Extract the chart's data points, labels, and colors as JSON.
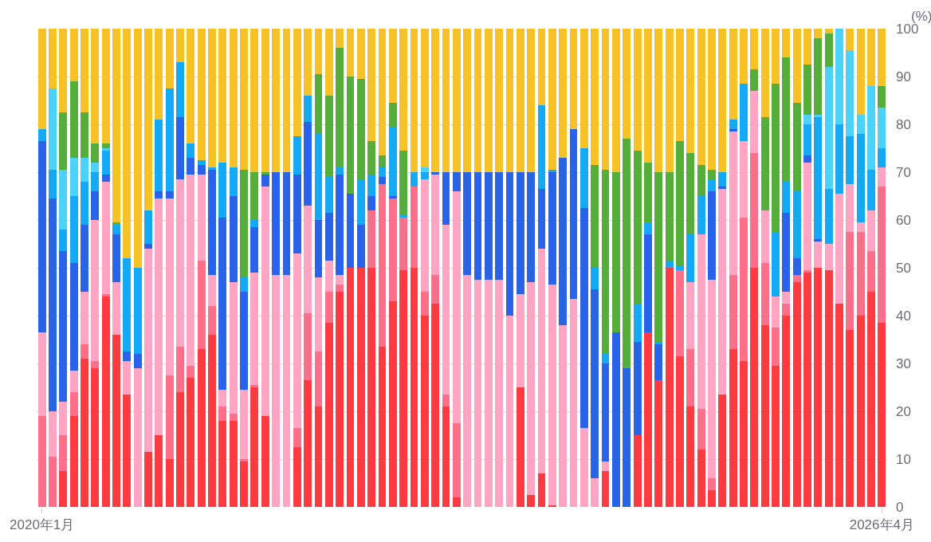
{
  "chart_data": {
    "type": "bar",
    "stacked": true,
    "ylabel": "(%)",
    "grid": "y",
    "legend": false,
    "ylim": [
      0,
      100
    ],
    "yticks": [
      0,
      10,
      20,
      30,
      40,
      50,
      60,
      70,
      80,
      90,
      100
    ],
    "categories": [
      "2020年1月",
      null,
      null,
      null,
      null,
      null,
      null,
      null,
      null,
      null,
      null,
      null,
      null,
      null,
      null,
      null,
      null,
      null,
      null,
      null,
      null,
      null,
      null,
      null,
      null,
      null,
      null,
      null,
      null,
      null,
      null,
      null,
      null,
      null,
      null,
      null,
      null,
      null,
      null,
      null,
      null,
      null,
      null,
      null,
      null,
      null,
      null,
      null,
      null,
      null,
      null,
      null,
      null,
      null,
      null,
      null,
      null,
      null,
      null,
      null,
      null,
      null,
      null,
      null,
      null,
      null,
      null,
      null,
      null,
      null,
      null,
      null,
      null,
      null,
      null,
      null,
      null,
      null,
      null,
      "2026年4月"
    ],
    "series": [
      {
        "color": "#ff3a40",
        "values": [
          0,
          0,
          7.5,
          19,
          31,
          29,
          44,
          36,
          23.5,
          0,
          11.5,
          15,
          10,
          24,
          27,
          33,
          36,
          18,
          18,
          9.5,
          25,
          19,
          0,
          0,
          12.5,
          26.5,
          21,
          38.5,
          45,
          50,
          50,
          50,
          33.5,
          43,
          49.5,
          50,
          40,
          42.5,
          21,
          2,
          0,
          0,
          0,
          0,
          0,
          25,
          2.5,
          7,
          0.3,
          0,
          0,
          0,
          0,
          7.5,
          0,
          0,
          15,
          36.5,
          26.5,
          50,
          31.5,
          21,
          12,
          3.5,
          23.5,
          33,
          30.5,
          50,
          38,
          29.5,
          40,
          47,
          49,
          50,
          49.5,
          42.5,
          37,
          40,
          45,
          38.5
        ]
      },
      {
        "color": "#ff6f8a",
        "values": [
          19,
          10.5,
          7.5,
          5,
          3,
          1.5,
          0.5,
          0,
          0,
          0,
          0,
          0,
          17.5,
          9.5,
          2.5,
          18.5,
          6,
          3,
          1.5,
          0.5,
          0.5,
          0,
          0,
          0,
          4,
          14,
          11.5,
          6.5,
          1.5,
          0,
          0,
          12,
          34,
          21.5,
          11,
          17,
          5,
          6,
          2.5,
          15.5,
          0,
          0,
          0,
          0,
          0,
          0,
          0,
          0,
          0,
          0,
          0,
          0,
          0,
          0,
          0,
          0,
          0,
          0,
          0,
          0,
          18,
          12,
          8.5,
          2.5,
          0,
          15.5,
          30,
          24,
          13,
          8,
          2.5,
          1.5,
          0.5,
          0,
          0,
          0,
          20.5,
          17.5,
          8.5,
          28.5
        ]
      },
      {
        "color": "#ffa5c3",
        "values": [
          17.5,
          9.5,
          7,
          4.5,
          11,
          29.5,
          23.5,
          11,
          7,
          29,
          42.5,
          49.5,
          37,
          35,
          40,
          18,
          6.5,
          3.5,
          27.5,
          14.5,
          23.5,
          48,
          48.5,
          48.5,
          36.5,
          22.5,
          15.5,
          6.5,
          2,
          0,
          0,
          0,
          0,
          0,
          0,
          0,
          23.5,
          21,
          35.5,
          48.5,
          48.5,
          47.5,
          47.5,
          47.5,
          40,
          19.5,
          44.5,
          47,
          46.2,
          38,
          43.5,
          16.5,
          6,
          2,
          0,
          0,
          0,
          0,
          0,
          0,
          0,
          14,
          36.5,
          41.5,
          43,
          30,
          16,
          13,
          11,
          6.5,
          2.5,
          0,
          22.5,
          5.5,
          5.5,
          23,
          10,
          2,
          8.5,
          4
        ]
      },
      {
        "color": "#2863e9",
        "values": [
          40,
          44.5,
          31.5,
          22.5,
          14,
          6,
          1.5,
          10,
          2,
          3,
          1,
          1.5,
          1.5,
          13,
          3.5,
          2,
          22,
          36,
          18,
          20.5,
          9.5,
          2.5,
          21.5,
          21.5,
          16.5,
          17.5,
          12,
          10,
          21,
          15.5,
          9,
          3,
          1.5,
          0.5,
          0,
          0,
          0,
          0.5,
          11,
          4,
          21.5,
          22.5,
          22.5,
          22.5,
          30,
          25.5,
          23,
          12.5,
          23.5,
          35,
          35.5,
          46,
          39.5,
          20.5,
          36.5,
          29,
          19.5,
          20.5,
          7.5,
          0,
          0,
          0,
          0,
          18.5,
          0.5,
          0.5,
          0,
          0,
          0,
          0,
          16.5,
          3.5,
          1.5,
          0.5,
          0,
          0,
          0,
          0,
          0,
          0
        ]
      },
      {
        "color": "#14a9f5",
        "values": [
          2.5,
          6,
          4.5,
          14,
          9,
          4,
          5,
          2,
          19.5,
          18,
          7,
          15,
          21.5,
          11.5,
          3,
          1,
          0.5,
          11.5,
          6,
          3,
          1.5,
          0,
          0,
          0,
          8,
          5.5,
          18,
          7.5,
          1.5,
          0,
          9.5,
          4.5,
          2,
          14.5,
          0.5,
          3,
          1.5,
          0,
          0,
          0,
          0,
          0,
          0,
          0,
          0,
          0,
          0,
          17.5,
          0.5,
          0,
          0,
          12.5,
          4.5,
          2,
          0,
          0,
          8,
          2.5,
          0.5,
          1.5,
          1,
          10,
          8,
          2.5,
          3,
          2,
          12,
          0,
          0,
          13.5,
          6.5,
          14,
          6.5,
          25.5,
          11.5,
          14.5,
          10,
          18.5,
          8.5,
          4
        ]
      },
      {
        "color": "#4bd2f8",
        "values": [
          0,
          17,
          12.5,
          8,
          5,
          2,
          0.5,
          0,
          0,
          0,
          0,
          0,
          0,
          0,
          0,
          0,
          0,
          0,
          0,
          0,
          0,
          0,
          0,
          0,
          0,
          0,
          0,
          0,
          0,
          0,
          0,
          0,
          0,
          0,
          0,
          0,
          1,
          0,
          0,
          0,
          0,
          0,
          0,
          0,
          0,
          0,
          0,
          0,
          0,
          0,
          0,
          0,
          0,
          0,
          0,
          0,
          0,
          0,
          0,
          0,
          0,
          0,
          0,
          0,
          0,
          0,
          0,
          0,
          0,
          0,
          0,
          0,
          2,
          0.5,
          25.5,
          20,
          18,
          4,
          17.5,
          8.5
        ]
      },
      {
        "color": "#56ae3a",
        "values": [
          0,
          0,
          12,
          16,
          9.5,
          4,
          1,
          0.5,
          0,
          0,
          0,
          0,
          0,
          0,
          0,
          0,
          0,
          0,
          0,
          22.5,
          10,
          0.5,
          0,
          0,
          0,
          0,
          12.5,
          17,
          25,
          24.5,
          21,
          7,
          2.5,
          5,
          13.5,
          0,
          0,
          0,
          0,
          0,
          0,
          0,
          0,
          0,
          0,
          0,
          0,
          0,
          0,
          0,
          0,
          0,
          21.5,
          38.5,
          33.5,
          48,
          32,
          12.5,
          35.5,
          18.5,
          26,
          17,
          6.5,
          2,
          0,
          0,
          0,
          4.5,
          19.5,
          31,
          26,
          18.5,
          10.5,
          16,
          7,
          0,
          0,
          0,
          0,
          4.5
        ]
      },
      {
        "color": "#f7c225",
        "values": [
          21,
          12.5,
          17.5,
          11,
          17.5,
          24,
          24,
          40.5,
          48,
          50,
          38,
          19,
          12.5,
          7,
          24,
          27.5,
          29,
          28,
          29,
          29.5,
          30,
          30,
          30,
          30,
          22.5,
          14,
          9.5,
          14,
          4,
          10,
          10.5,
          23.5,
          26.5,
          15.5,
          25.5,
          30,
          29,
          30,
          30,
          30,
          30,
          30,
          30,
          30,
          30,
          30,
          30,
          16,
          29.5,
          27,
          21,
          25,
          28.5,
          29.5,
          30,
          23,
          25.5,
          28,
          30,
          30,
          23.5,
          26,
          28.5,
          29.5,
          30,
          19,
          11.5,
          8.5,
          18.5,
          11.5,
          6,
          15.5,
          7.5,
          2,
          1,
          0,
          4.5,
          18,
          12,
          12
        ]
      }
    ]
  }
}
